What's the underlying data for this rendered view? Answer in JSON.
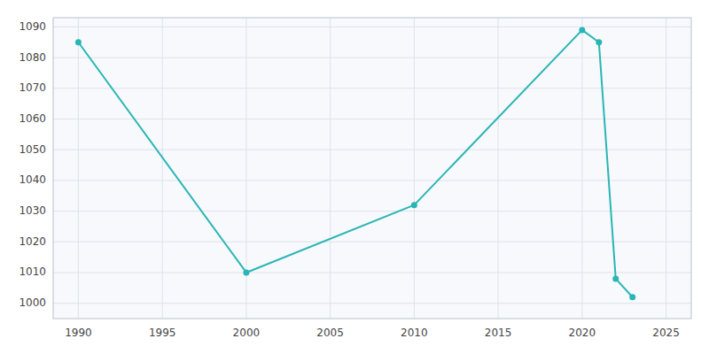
{
  "chart_data": {
    "type": "line",
    "x": [
      1990,
      2000,
      2010,
      2020,
      2021,
      2022,
      2023
    ],
    "values": [
      1085,
      1010,
      1032,
      1089,
      1085,
      1008,
      1002
    ],
    "color": "#2ab5b5",
    "xlim": [
      1988.5,
      2026.5
    ],
    "ylim": [
      995,
      1093
    ],
    "xticks": [
      1990,
      1995,
      2000,
      2005,
      2010,
      2015,
      2020,
      2025
    ],
    "yticks": [
      1000,
      1010,
      1020,
      1030,
      1040,
      1050,
      1060,
      1070,
      1080,
      1090
    ],
    "grid": true
  }
}
